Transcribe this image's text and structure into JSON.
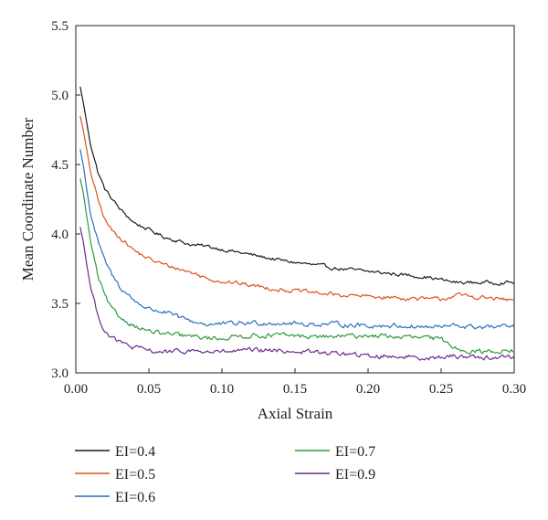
{
  "chart_data": {
    "type": "line",
    "title": "",
    "xlabel": "Axial Strain",
    "ylabel": "Mean Coordinate Number",
    "xlim": [
      0.0,
      0.3
    ],
    "ylim": [
      3.0,
      5.5
    ],
    "x_ticks": [
      "0.00",
      "0.05",
      "0.10",
      "0.15",
      "0.20",
      "0.25",
      "0.30"
    ],
    "y_ticks": [
      "3.0",
      "3.5",
      "4.0",
      "4.5",
      "5.0",
      "5.5"
    ],
    "grid": false,
    "legend_position": "below",
    "x": [
      0.003,
      0.005,
      0.01,
      0.015,
      0.02,
      0.025,
      0.03,
      0.04,
      0.05,
      0.06,
      0.07,
      0.08,
      0.09,
      0.1,
      0.12,
      0.14,
      0.16,
      0.18,
      0.2,
      0.22,
      0.24,
      0.25,
      0.26,
      0.27,
      0.28,
      0.29,
      0.3
    ],
    "series": [
      {
        "name": "EI=0.4",
        "color": "#1a1a1a",
        "noise": 0.012,
        "values": [
          5.06,
          4.95,
          4.65,
          4.45,
          4.32,
          4.25,
          4.18,
          4.08,
          4.03,
          3.98,
          3.95,
          3.92,
          3.91,
          3.89,
          3.85,
          3.81,
          3.78,
          3.75,
          3.73,
          3.71,
          3.69,
          3.67,
          3.65,
          3.65,
          3.65,
          3.65,
          3.65
        ]
      },
      {
        "name": "EI=0.5",
        "color": "#d9531e",
        "noise": 0.014,
        "values": [
          4.85,
          4.75,
          4.45,
          4.25,
          4.1,
          4.02,
          3.98,
          3.88,
          3.82,
          3.78,
          3.75,
          3.72,
          3.68,
          3.66,
          3.63,
          3.6,
          3.58,
          3.56,
          3.55,
          3.54,
          3.53,
          3.53,
          3.56,
          3.55,
          3.54,
          3.53,
          3.52
        ]
      },
      {
        "name": "EI=0.6",
        "color": "#2a6fbf",
        "noise": 0.016,
        "values": [
          4.61,
          4.5,
          4.15,
          3.95,
          3.8,
          3.7,
          3.62,
          3.52,
          3.46,
          3.44,
          3.4,
          3.37,
          3.35,
          3.35,
          3.36,
          3.36,
          3.35,
          3.35,
          3.34,
          3.34,
          3.33,
          3.33,
          3.34,
          3.33,
          3.33,
          3.33,
          3.33
        ]
      },
      {
        "name": "EI=0.7",
        "color": "#2e9a3c",
        "noise": 0.016,
        "values": [
          4.4,
          4.3,
          3.95,
          3.7,
          3.55,
          3.45,
          3.4,
          3.34,
          3.3,
          3.28,
          3.27,
          3.26,
          3.25,
          3.25,
          3.27,
          3.27,
          3.26,
          3.26,
          3.27,
          3.26,
          3.25,
          3.24,
          3.18,
          3.16,
          3.15,
          3.16,
          3.16
        ]
      },
      {
        "name": "EI=0.9",
        "color": "#6a2b8e",
        "noise": 0.016,
        "values": [
          4.05,
          3.95,
          3.62,
          3.42,
          3.3,
          3.25,
          3.22,
          3.18,
          3.16,
          3.15,
          3.15,
          3.16,
          3.15,
          3.15,
          3.16,
          3.16,
          3.15,
          3.14,
          3.12,
          3.12,
          3.11,
          3.11,
          3.12,
          3.12,
          3.11,
          3.11,
          3.12
        ]
      }
    ]
  }
}
